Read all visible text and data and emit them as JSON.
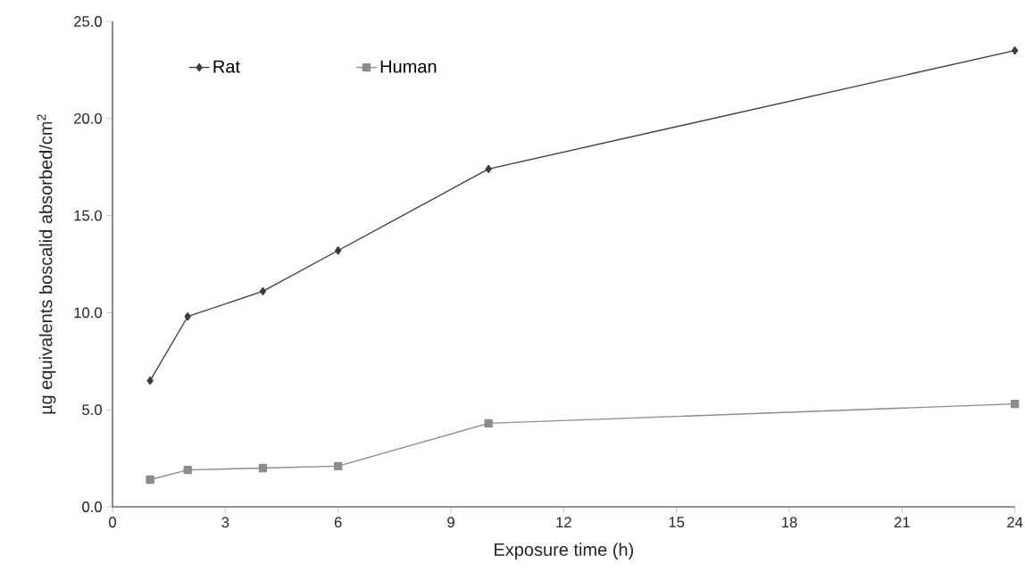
{
  "chart_data": {
    "type": "line",
    "xlabel": "Exposure time (h)",
    "ylabel": "µg equivalents boscalid absorbed/cm$^{2}$",
    "x": [
      1,
      2,
      4,
      6,
      10,
      24
    ],
    "series": [
      {
        "name": "Rat",
        "color": "#3c3c3c",
        "marker": "diamond",
        "values": [
          6.5,
          9.8,
          11.1,
          13.2,
          17.4,
          23.5
        ]
      },
      {
        "name": "Human",
        "color": "#8c8c8c",
        "marker": "square",
        "values": [
          1.4,
          1.9,
          2.0,
          2.1,
          4.3,
          5.3
        ]
      }
    ],
    "xlim": [
      0,
      24
    ],
    "xticks": [
      0,
      3,
      6,
      9,
      12,
      15,
      18,
      21,
      24
    ],
    "ylim": [
      0,
      25
    ],
    "yticks": [
      {
        "value": 0,
        "label": "0.0"
      },
      {
        "value": 5,
        "label": "5.0"
      },
      {
        "value": 10,
        "label": "10.0"
      },
      {
        "value": 15,
        "label": "15.0"
      },
      {
        "value": 20,
        "label": "20.0"
      },
      {
        "value": 25,
        "label": "25.0"
      }
    ],
    "legend": "top left",
    "grid": false,
    "line_style": "solid"
  }
}
